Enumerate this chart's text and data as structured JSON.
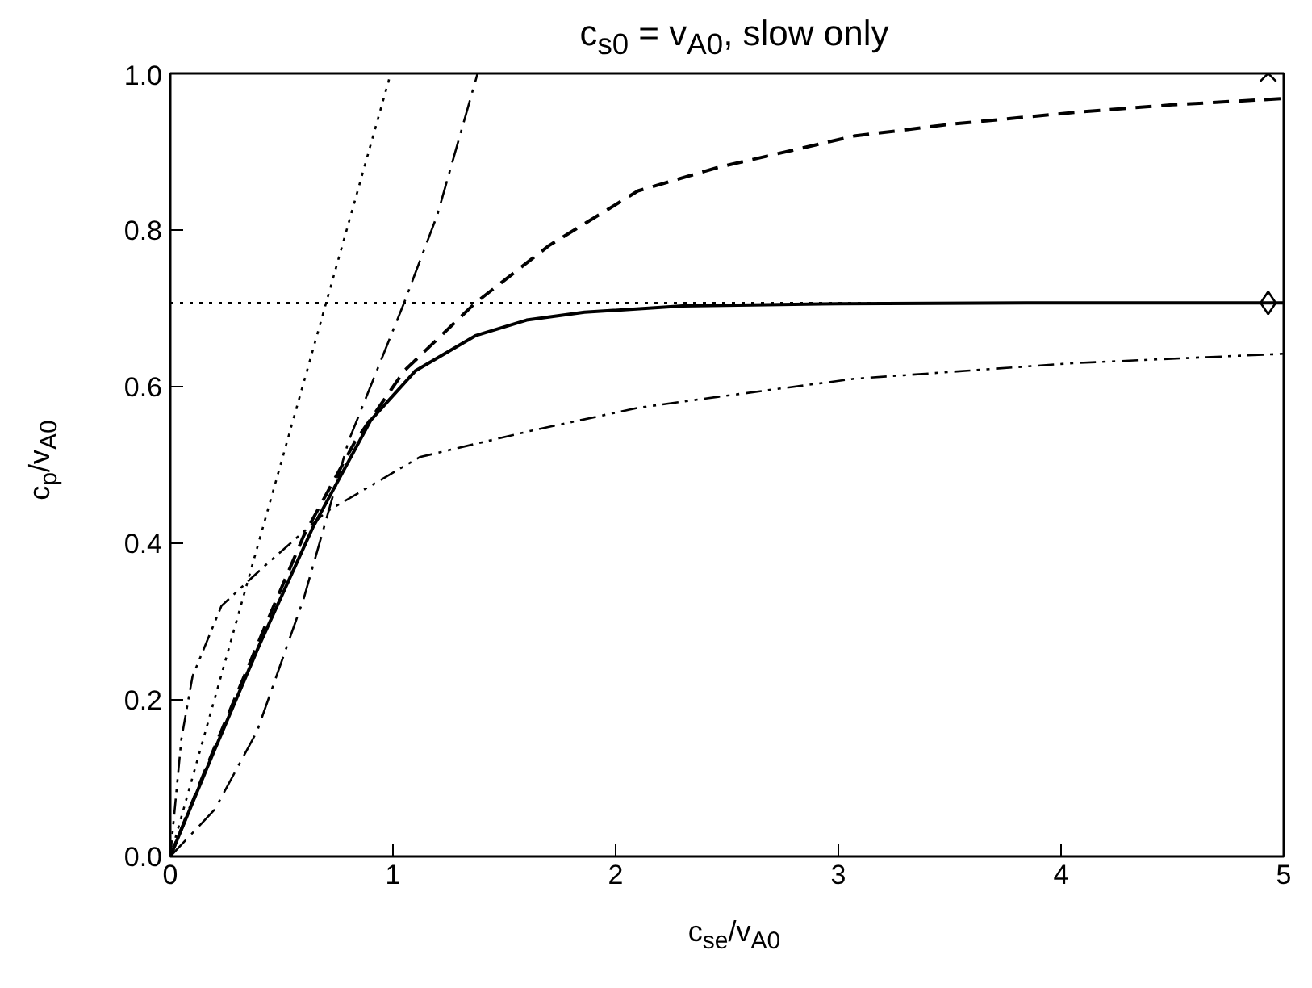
{
  "chart_data": {
    "type": "line",
    "title": "c$_{s0}$ = v$_{A0}$, slow only",
    "xlabel": "c$_{se}$/v$_{A0}$",
    "ylabel": "c$_{p}$/v$_{A0}$",
    "xlim": [
      0,
      5
    ],
    "ylim": [
      0,
      1.0
    ],
    "xticks": [
      0,
      1,
      2,
      3,
      4,
      5
    ],
    "yticks": [
      {
        "value": 0,
        "label": "0.0"
      },
      {
        "value": 0.2,
        "label": "0.2"
      },
      {
        "value": 0.4,
        "label": "0.4"
      },
      {
        "value": 0.6,
        "label": "0.6"
      },
      {
        "value": 0.8,
        "label": "0.8"
      },
      {
        "value": 1.0,
        "label": "1.0"
      }
    ],
    "grid": false,
    "ref_lines": [
      {
        "axis": "y",
        "value": 0.707,
        "color": "#000000",
        "line_style": "dotted"
      }
    ],
    "series": [
      {
        "color": "#000000",
        "line_style": "dotted",
        "x": [
          0,
          0.99
        ],
        "values": [
          0,
          1.0
        ]
      },
      {
        "color": "#000000",
        "line_style": "dashdot",
        "x": [
          0,
          0.2,
          0.39,
          0.6,
          0.8,
          1.05,
          1.2,
          1.38
        ],
        "values": [
          0,
          0.06,
          0.16,
          0.33,
          0.53,
          0.707,
          0.82,
          1.0
        ]
      },
      {
        "color": "#000000",
        "line_style": "dashed",
        "x": [
          0,
          0.2,
          0.42,
          0.6,
          0.83,
          1.05,
          1.37,
          1.7,
          2.1,
          2.46,
          3.07,
          3.5,
          4.05,
          4.5,
          5.0
        ],
        "values": [
          0,
          0.14,
          0.29,
          0.41,
          0.53,
          0.62,
          0.707,
          0.78,
          0.85,
          0.88,
          0.92,
          0.935,
          0.95,
          0.96,
          0.968
        ]
      },
      {
        "color": "#000000",
        "line_style": "solid",
        "x": [
          0,
          0.19,
          0.4,
          0.64,
          0.9,
          1.1,
          1.37,
          1.6,
          1.86,
          2.3,
          3.0,
          4.0,
          5.0
        ],
        "values": [
          0,
          0.13,
          0.27,
          0.42,
          0.557,
          0.62,
          0.665,
          0.685,
          0.695,
          0.703,
          0.706,
          0.707,
          0.707
        ]
      },
      {
        "color": "#000000",
        "line_style": "dashdotdot",
        "x": [
          0,
          0.05,
          0.1,
          0.23,
          0.42,
          0.7,
          1.12,
          1.61,
          2.1,
          2.46,
          3.07,
          4.05,
          5.0
        ],
        "values": [
          0,
          0.15,
          0.23,
          0.32,
          0.37,
          0.44,
          0.51,
          0.543,
          0.573,
          0.587,
          0.61,
          0.63,
          0.642
        ]
      },
      {
        "type": "scatter",
        "marker": "diamond",
        "color": "#000000",
        "x": [
          4.93
        ],
        "values": [
          0.707
        ]
      },
      {
        "type": "scatter",
        "marker": "cross",
        "color": "#000000",
        "x": [
          4.93
        ],
        "values": [
          1.0
        ]
      }
    ]
  }
}
